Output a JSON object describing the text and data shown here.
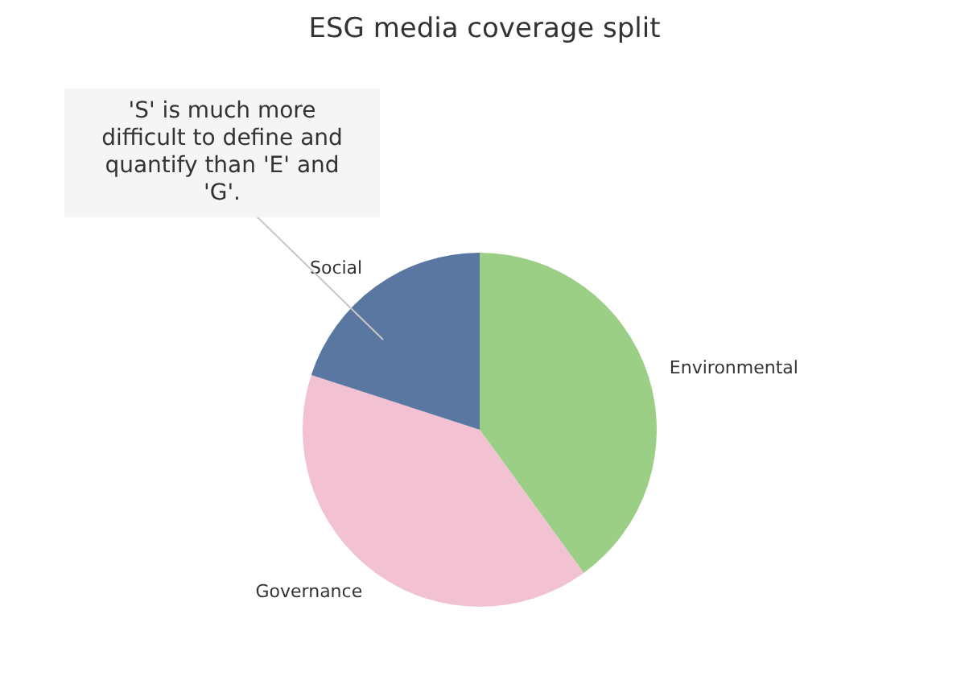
{
  "chart_data": {
    "type": "pie",
    "title": "ESG media coverage split",
    "categories": [
      "Environmental",
      "Governance",
      "Social"
    ],
    "values": [
      40,
      40,
      20
    ],
    "colors": [
      "#9bcf85",
      "#f2c2d3",
      "#5977a1"
    ],
    "annotations": [
      "'S' is much more difficult to define and quantify than 'E' and 'G'."
    ]
  }
}
